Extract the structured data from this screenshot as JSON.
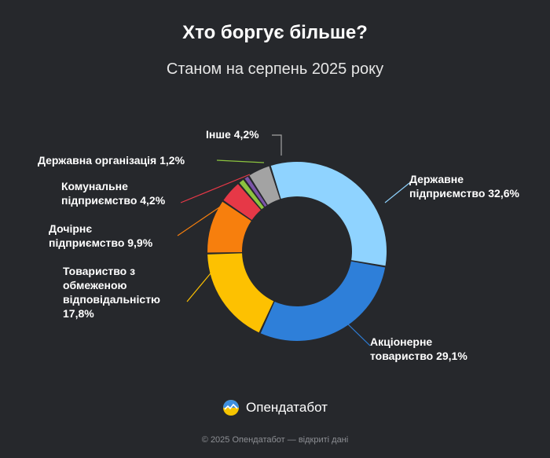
{
  "header": {
    "title": "Хто боргує більше?",
    "subtitle": "Станом на серпень 2025 року"
  },
  "brand": {
    "name": "Опендатабот",
    "icon": "opendatabot-logo-icon"
  },
  "footer": {
    "text": "© 2025 Опендатабот — відкриті дані"
  },
  "chart_data": {
    "type": "pie",
    "variant": "donut",
    "title": "Хто боргує більше?",
    "subtitle": "Станом на серпень 2025 року",
    "unit": "%",
    "slices": [
      {
        "label_lines": [
          "Державне",
          "підприємство 32,6%"
        ],
        "name": "Державне підприємство",
        "value": 32.6,
        "display": "32,6%",
        "color": "#8fd3ff"
      },
      {
        "label_lines": [
          "Акціонерне",
          "товариство 29,1%"
        ],
        "name": "Акціонерне товариство",
        "value": 29.1,
        "display": "29,1%",
        "color": "#2e7fd9"
      },
      {
        "label_lines": [
          "Товариство з",
          "обмеженою",
          "відповідальністю",
          "17,8%"
        ],
        "name": "Товариство з обмеженою відповідальністю",
        "value": 17.8,
        "display": "17,8%",
        "color": "#fdc101"
      },
      {
        "label_lines": [
          "Дочірнє",
          "підприємство 9,9%"
        ],
        "name": "Дочірнє підприємство",
        "value": 9.9,
        "display": "9,9%",
        "color": "#f77f0d"
      },
      {
        "label_lines": [
          "Комунальне",
          "підприємство 4,2%"
        ],
        "name": "Комунальне підприємство",
        "value": 4.2,
        "display": "4,2%",
        "color": "#e63847"
      },
      {
        "label_lines": [
          "Державна організація 1,2%"
        ],
        "name": "Державна організація",
        "value": 1.2,
        "display": "1,2%",
        "color": "#8cc43f"
      },
      {
        "label_lines": [
          ""
        ],
        "name": "",
        "value": 1.0,
        "display": "",
        "color": "#7b54a8"
      },
      {
        "label_lines": [
          "Інше 4,2%"
        ],
        "name": "Інше",
        "value": 4.2,
        "display": "4,2%",
        "color": "#a3a3a3"
      }
    ]
  }
}
